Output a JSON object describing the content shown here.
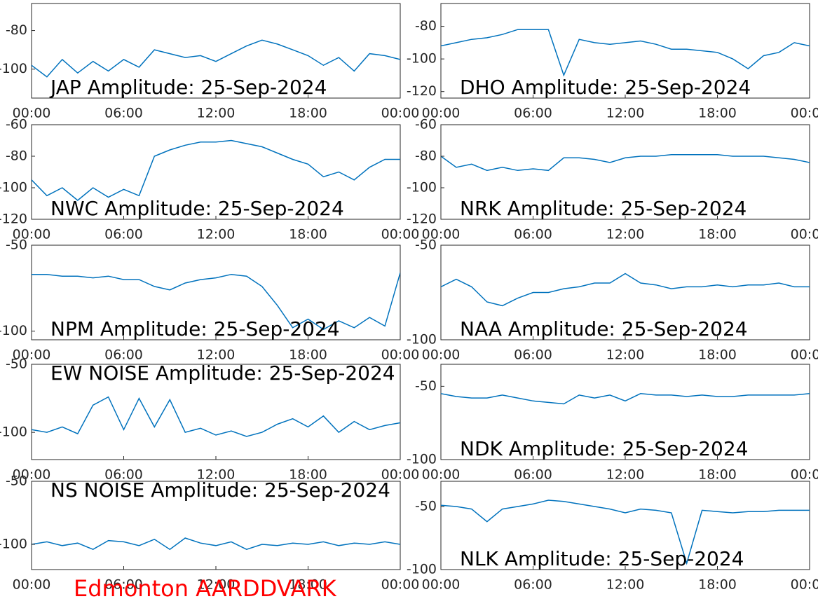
{
  "chart_data": [
    {
      "type": "line",
      "title": "JAP Amplitude: 25-Sep-2024",
      "color": "#0072bd",
      "x": [
        0,
        1,
        2,
        3,
        4,
        5,
        6,
        7,
        8,
        9,
        10,
        11,
        12,
        13,
        14,
        15,
        16,
        17,
        18,
        19,
        20,
        21,
        22,
        23,
        24
      ],
      "values": [
        -98,
        -104,
        -95,
        -102,
        -96,
        -101,
        -95,
        -99,
        -90,
        -92,
        -94,
        -93,
        -96,
        -92,
        -88,
        -85,
        -87,
        -90,
        -93,
        -98,
        -94,
        -101,
        -92,
        -93,
        -95
      ],
      "xlim": [
        0,
        24
      ],
      "xticks": [
        {
          "value": 0,
          "label": "00:00"
        },
        {
          "value": 6,
          "label": "06:00"
        },
        {
          "value": 12,
          "label": "12:00"
        },
        {
          "value": 18,
          "label": "18:00"
        },
        {
          "value": 24,
          "label": "00:00"
        }
      ],
      "ylim": [
        -115,
        -66
      ],
      "yticks": [
        -80,
        -100
      ]
    },
    {
      "type": "line",
      "title": "DHO Amplitude: 25-Sep-2024",
      "color": "#0072bd",
      "x": [
        0,
        1,
        2,
        3,
        4,
        5,
        6,
        7,
        8,
        9,
        10,
        11,
        12,
        13,
        14,
        15,
        16,
        17,
        18,
        19,
        20,
        21,
        22,
        23,
        24
      ],
      "values": [
        -92,
        -90,
        -88,
        -87,
        -85,
        -82,
        -82,
        -82,
        -110,
        -88,
        -90,
        -91,
        -90,
        -89,
        -91,
        -94,
        -94,
        -95,
        -96,
        -100,
        -106,
        -98,
        -96,
        -90,
        -92
      ],
      "xlim": [
        0,
        24
      ],
      "xticks": [
        {
          "value": 0,
          "label": "00:00"
        },
        {
          "value": 6,
          "label": "06:00"
        },
        {
          "value": 12,
          "label": "12:00"
        },
        {
          "value": 18,
          "label": "18:00"
        },
        {
          "value": 24,
          "label": "00:00"
        }
      ],
      "ylim": [
        -124,
        -66
      ],
      "yticks": [
        -80,
        -100,
        -120
      ]
    },
    {
      "type": "line",
      "title": "NWC Amplitude: 25-Sep-2024",
      "color": "#0072bd",
      "x": [
        0,
        1,
        2,
        3,
        4,
        5,
        6,
        7,
        8,
        9,
        10,
        11,
        12,
        13,
        14,
        15,
        16,
        17,
        18,
        19,
        20,
        21,
        22,
        23,
        24
      ],
      "values": [
        -95,
        -105,
        -100,
        -108,
        -100,
        -106,
        -101,
        -105,
        -80,
        -76,
        -73,
        -71,
        -71,
        -70,
        -72,
        -74,
        -78,
        -82,
        -85,
        -93,
        -90,
        -95,
        -87,
        -82,
        -82
      ],
      "xlim": [
        0,
        24
      ],
      "xticks": [
        {
          "value": 0,
          "label": "00:00"
        },
        {
          "value": 6,
          "label": "06:00"
        },
        {
          "value": 12,
          "label": "12:00"
        },
        {
          "value": 18,
          "label": "18:00"
        },
        {
          "value": 24,
          "label": "00:00"
        }
      ],
      "ylim": [
        -120,
        -60
      ],
      "yticks": [
        -60,
        -80,
        -100,
        -120
      ]
    },
    {
      "type": "line",
      "title": "NRK Amplitude: 25-Sep-2024",
      "color": "#0072bd",
      "x": [
        0,
        1,
        2,
        3,
        4,
        5,
        6,
        7,
        8,
        9,
        10,
        11,
        12,
        13,
        14,
        15,
        16,
        17,
        18,
        19,
        20,
        21,
        22,
        23,
        24
      ],
      "values": [
        -80,
        -87,
        -85,
        -89,
        -87,
        -89,
        -88,
        -89,
        -81,
        -81,
        -82,
        -84,
        -81,
        -80,
        -80,
        -79,
        -79,
        -79,
        -79,
        -80,
        -80,
        -80,
        -81,
        -82,
        -84
      ],
      "xlim": [
        0,
        24
      ],
      "xticks": [
        {
          "value": 0,
          "label": "00:00"
        },
        {
          "value": 6,
          "label": "06:00"
        },
        {
          "value": 12,
          "label": "12:00"
        },
        {
          "value": 18,
          "label": "18:00"
        },
        {
          "value": 24,
          "label": "00:00"
        }
      ],
      "ylim": [
        -120,
        -60
      ],
      "yticks": [
        -60,
        -80,
        -100,
        -120
      ]
    },
    {
      "type": "line",
      "title": "NPM Amplitude: 25-Sep-2024",
      "color": "#0072bd",
      "x": [
        0,
        1,
        2,
        3,
        4,
        5,
        6,
        7,
        8,
        9,
        10,
        11,
        12,
        13,
        14,
        15,
        16,
        17,
        18,
        19,
        20,
        21,
        22,
        23,
        24
      ],
      "values": [
        -67,
        -67,
        -68,
        -68,
        -69,
        -68,
        -70,
        -70,
        -74,
        -76,
        -72,
        -70,
        -69,
        -67,
        -68,
        -74,
        -85,
        -98,
        -93,
        -99,
        -94,
        -98,
        -92,
        -97,
        -66
      ],
      "xlim": [
        0,
        24
      ],
      "xticks": [
        {
          "value": 0,
          "label": "00:00"
        },
        {
          "value": 6,
          "label": "06:00"
        },
        {
          "value": 12,
          "label": "12:00"
        },
        {
          "value": 18,
          "label": "18:00"
        },
        {
          "value": 24,
          "label": "00:00"
        }
      ],
      "ylim": [
        -105,
        -50
      ],
      "yticks": [
        -50,
        -100
      ]
    },
    {
      "type": "line",
      "title": "NAA Amplitude: 25-Sep-2024",
      "color": "#0072bd",
      "x": [
        0,
        1,
        2,
        3,
        4,
        5,
        6,
        7,
        8,
        9,
        10,
        11,
        12,
        13,
        14,
        15,
        16,
        17,
        18,
        19,
        20,
        21,
        22,
        23,
        24
      ],
      "values": [
        -72,
        -68,
        -72,
        -80,
        -82,
        -78,
        -75,
        -75,
        -73,
        -72,
        -70,
        -70,
        -65,
        -70,
        -71,
        -73,
        -72,
        -72,
        -71,
        -72,
        -71,
        -71,
        -70,
        -72,
        -72
      ],
      "xlim": [
        0,
        24
      ],
      "xticks": [
        {
          "value": 0,
          "label": "00:00"
        },
        {
          "value": 6,
          "label": "06:00"
        },
        {
          "value": 12,
          "label": "12:00"
        },
        {
          "value": 18,
          "label": "18:00"
        },
        {
          "value": 24,
          "label": "00:00"
        }
      ],
      "ylim": [
        -100,
        -50
      ],
      "yticks": [
        -50,
        -100
      ]
    },
    {
      "type": "line",
      "title": "EW NOISE Amplitude: 25-Sep-2024",
      "color": "#0072bd",
      "x": [
        0,
        1,
        2,
        3,
        4,
        5,
        6,
        7,
        8,
        9,
        10,
        11,
        12,
        13,
        14,
        15,
        16,
        17,
        18,
        19,
        20,
        21,
        22,
        23,
        24
      ],
      "values": [
        -98,
        -100,
        -96,
        -101,
        -80,
        -74,
        -98,
        -75,
        -96,
        -76,
        -100,
        -97,
        -102,
        -99,
        -103,
        -100,
        -94,
        -90,
        -96,
        -88,
        -100,
        -92,
        -98,
        -95,
        -93
      ],
      "xlim": [
        0,
        24
      ],
      "xticks": [
        {
          "value": 0,
          "label": "00:00"
        },
        {
          "value": 6,
          "label": "06:00"
        },
        {
          "value": 12,
          "label": "12:00"
        },
        {
          "value": 18,
          "label": "18:00"
        },
        {
          "value": 24,
          "label": "00:00"
        }
      ],
      "ylim": [
        -120,
        -50
      ],
      "yticks": [
        -50,
        -100
      ]
    },
    {
      "type": "line",
      "title": "NDK Amplitude: 25-Sep-2024",
      "color": "#0072bd",
      "x": [
        0,
        1,
        2,
        3,
        4,
        5,
        6,
        7,
        8,
        9,
        10,
        11,
        12,
        13,
        14,
        15,
        16,
        17,
        18,
        19,
        20,
        21,
        22,
        23,
        24
      ],
      "values": [
        -55,
        -57,
        -58,
        -58,
        -56,
        -58,
        -60,
        -61,
        -62,
        -56,
        -58,
        -56,
        -60,
        -55,
        -56,
        -56,
        -57,
        -56,
        -57,
        -57,
        -56,
        -56,
        -56,
        -56,
        -55
      ],
      "xlim": [
        0,
        24
      ],
      "xticks": [
        {
          "value": 0,
          "label": "00:00"
        },
        {
          "value": 6,
          "label": "06:00"
        },
        {
          "value": 12,
          "label": "12:00"
        },
        {
          "value": 18,
          "label": "18:00"
        },
        {
          "value": 24,
          "label": "00:00"
        }
      ],
      "ylim": [
        -100,
        -35
      ],
      "yticks": [
        -50,
        -100
      ]
    },
    {
      "type": "line",
      "title": "NS NOISE Amplitude: 25-Sep-2024",
      "color": "#0072bd",
      "x": [
        0,
        1,
        2,
        3,
        4,
        5,
        6,
        7,
        8,
        9,
        10,
        11,
        12,
        13,
        14,
        15,
        16,
        17,
        18,
        19,
        20,
        21,
        22,
        23,
        24
      ],
      "values": [
        -100,
        -98,
        -101,
        -99,
        -104,
        -97,
        -98,
        -101,
        -96,
        -104,
        -95,
        -99,
        -101,
        -98,
        -104,
        -100,
        -101,
        -99,
        -100,
        -98,
        -101,
        -99,
        -100,
        -98,
        -100
      ],
      "xlim": [
        0,
        24
      ],
      "xticks": [
        {
          "value": 0,
          "label": "00:00"
        },
        {
          "value": 6,
          "label": "06:00"
        },
        {
          "value": 12,
          "label": "12:00"
        },
        {
          "value": 18,
          "label": "18:00"
        },
        {
          "value": 24,
          "label": "00:00"
        }
      ],
      "ylim": [
        -120,
        -50
      ],
      "yticks": [
        -50,
        -100
      ]
    },
    {
      "type": "line",
      "title": "NLK Amplitude: 25-Sep-2024",
      "color": "#0072bd",
      "x": [
        0,
        1,
        2,
        3,
        4,
        5,
        6,
        7,
        8,
        9,
        10,
        11,
        12,
        13,
        14,
        15,
        16,
        17,
        18,
        19,
        20,
        21,
        22,
        23,
        24
      ],
      "values": [
        -49,
        -50,
        -52,
        -62,
        -52,
        -50,
        -48,
        -45,
        -46,
        -48,
        -50,
        -52,
        -55,
        -52,
        -53,
        -55,
        -95,
        -53,
        -54,
        -55,
        -54,
        -54,
        -53,
        -53,
        -53
      ],
      "xlim": [
        0,
        24
      ],
      "xticks": [
        {
          "value": 0,
          "label": "00:00"
        },
        {
          "value": 6,
          "label": "06:00"
        },
        {
          "value": 12,
          "label": "12:00"
        },
        {
          "value": 18,
          "label": "18:00"
        },
        {
          "value": 24,
          "label": "00:00"
        }
      ],
      "ylim": [
        -100,
        -30
      ],
      "yticks": [
        -50,
        -100
      ]
    }
  ],
  "footer": "Edmonton AARDDVARK"
}
